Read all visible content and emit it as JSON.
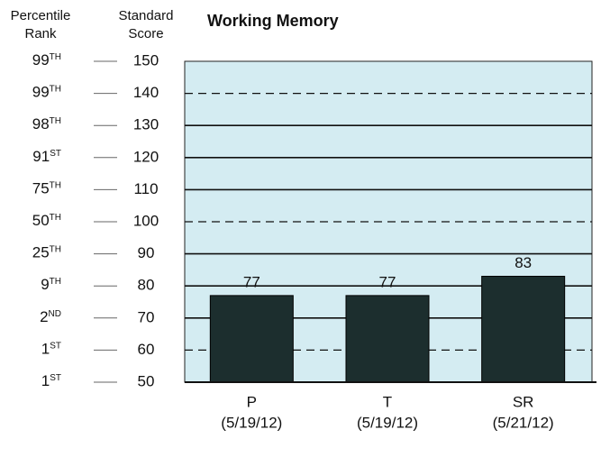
{
  "chart_data": {
    "type": "bar",
    "title": "Working Memory",
    "left_header": [
      "Percentile",
      "Rank"
    ],
    "right_header": [
      "Standard",
      "Score"
    ],
    "categories": [
      "P",
      "T",
      "SR"
    ],
    "dates": [
      "(5/19/12)",
      "(5/19/12)",
      "(5/21/12)"
    ],
    "values": [
      77,
      77,
      83
    ],
    "color": "#1c2e2e",
    "background": "#d4ecf2",
    "ylim": [
      50,
      150
    ],
    "yticks": [
      50,
      60,
      70,
      80,
      90,
      100,
      110,
      120,
      130,
      140,
      150
    ],
    "percentile_ranks": [
      {
        "rank": "1",
        "suffix": "ST"
      },
      {
        "rank": "1",
        "suffix": "ST"
      },
      {
        "rank": "2",
        "suffix": "ND"
      },
      {
        "rank": "9",
        "suffix": "TH"
      },
      {
        "rank": "25",
        "suffix": "TH"
      },
      {
        "rank": "50",
        "suffix": "TH"
      },
      {
        "rank": "75",
        "suffix": "TH"
      },
      {
        "rank": "91",
        "suffix": "ST"
      },
      {
        "rank": "98",
        "suffix": "TH"
      },
      {
        "rank": "99",
        "suffix": "TH"
      },
      {
        "rank": "99",
        "suffix": "TH"
      }
    ],
    "grid": true,
    "dashed_grid": [
      60,
      100,
      140
    ]
  }
}
